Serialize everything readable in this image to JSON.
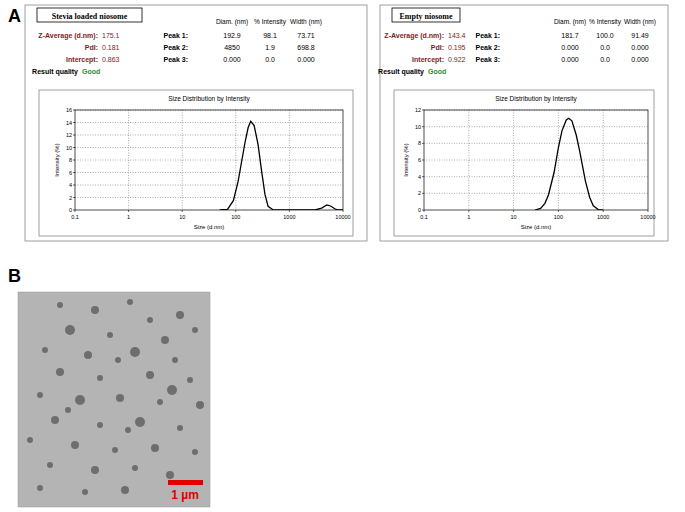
{
  "panel_labels": [
    "A",
    "B"
  ],
  "summaries": [
    {
      "title": "Stevia loaded niosome",
      "fields": [
        {
          "label": "Z-Average (d.nm):",
          "value": "175.1"
        },
        {
          "label": "PdI:",
          "value": "0.181"
        },
        {
          "label": "Intercept:",
          "value": "0.863"
        }
      ],
      "quality_label": "Result quality",
      "quality": "Good",
      "columns": [
        "Diam. (nm)",
        "% Intensity",
        "Width (nm)"
      ],
      "peaks": [
        {
          "label": "Peak 1:",
          "values": [
            "192.9",
            "98.1",
            "73.71"
          ]
        },
        {
          "label": "Peak 2:",
          "values": [
            "4850",
            "1.9",
            "698.8"
          ]
        },
        {
          "label": "Peak 3:",
          "values": [
            "0.000",
            "0.0",
            "0.000"
          ]
        }
      ]
    },
    {
      "title": "Empty niosome",
      "fields": [
        {
          "label": "Z-Average (d.nm):",
          "value": "143.4"
        },
        {
          "label": "PdI:",
          "value": "0.195"
        },
        {
          "label": "Intercept:",
          "value": "0.922"
        }
      ],
      "quality_label": "Result quality",
      "quality": "Good",
      "columns": [
        "Diam. (nm)",
        "% Intensity",
        "Width (nm)"
      ],
      "peaks": [
        {
          "label": "Peak 1:",
          "values": [
            "181.7",
            "100.0",
            "91.49"
          ]
        },
        {
          "label": "Peak 2:",
          "values": [
            "0.000",
            "0.0",
            "0.000"
          ]
        },
        {
          "label": "Peak 3:",
          "values": [
            "0.000",
            "0.0",
            "0.000"
          ]
        }
      ]
    }
  ],
  "chart_data": [
    {
      "type": "line",
      "title": "Size Distribution by Intensity",
      "x_label": "Size (d.nm)",
      "y_label": "Intensity (%)",
      "log": "x",
      "grid": true,
      "color": "#000000",
      "xlim": [
        0.1,
        10000
      ],
      "xticks": [
        0.1,
        1,
        10,
        100,
        1000,
        10000
      ],
      "ylim": [
        0,
        16
      ],
      "yticks": [
        0,
        2,
        4,
        6,
        8,
        10,
        12,
        14,
        16
      ],
      "x": [
        50,
        70,
        90,
        110,
        130,
        150,
        170,
        190,
        220,
        260,
        300,
        350,
        400,
        500,
        1000,
        2000,
        3000,
        4000,
        5000,
        6000,
        7000,
        8000,
        10000
      ],
      "values": [
        0,
        0.1,
        1.5,
        4.5,
        8,
        11,
        13.2,
        14.2,
        13.5,
        10.5,
        6.5,
        2.5,
        0.6,
        0,
        0,
        0,
        0,
        0.3,
        0.8,
        0.6,
        0.2,
        0,
        0
      ]
    },
    {
      "type": "line",
      "title": "Size Distribution by Intensity",
      "x_label": "Size (d.nm)",
      "y_label": "Intensity (%)",
      "log": "x",
      "grid": true,
      "color": "#000000",
      "xlim": [
        0.1,
        10000
      ],
      "xticks": [
        0.1,
        1,
        10,
        100,
        1000,
        10000
      ],
      "ylim": [
        0,
        12
      ],
      "yticks": [
        0,
        2,
        4,
        6,
        8,
        10,
        12
      ],
      "x": [
        30,
        40,
        50,
        60,
        80,
        100,
        120,
        150,
        170,
        200,
        250,
        300,
        400,
        500,
        600,
        800,
        1000
      ],
      "values": [
        0,
        0.2,
        0.8,
        1.8,
        4.5,
        7.5,
        9.5,
        10.8,
        11,
        10.7,
        9,
        7,
        3.5,
        1.5,
        0.5,
        0,
        0
      ]
    }
  ],
  "micrograph": {
    "scale_bar": "1 µm"
  }
}
